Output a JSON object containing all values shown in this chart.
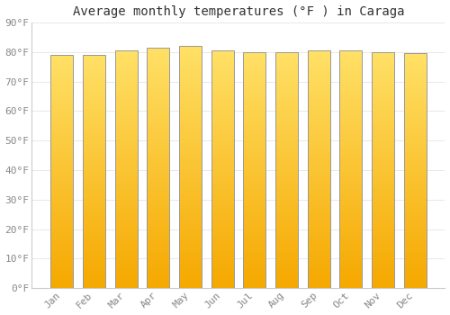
{
  "title": "Average monthly temperatures (°F ) in Caraga",
  "months": [
    "Jan",
    "Feb",
    "Mar",
    "Apr",
    "May",
    "Jun",
    "Jul",
    "Aug",
    "Sep",
    "Oct",
    "Nov",
    "Dec"
  ],
  "values": [
    79,
    79,
    80.5,
    81.5,
    82,
    80.5,
    80,
    80,
    80.5,
    80.5,
    80,
    79.5
  ],
  "ylim": [
    0,
    90
  ],
  "yticks": [
    0,
    10,
    20,
    30,
    40,
    50,
    60,
    70,
    80,
    90
  ],
  "ytick_labels": [
    "0°F",
    "10°F",
    "20°F",
    "30°F",
    "40°F",
    "50°F",
    "60°F",
    "70°F",
    "80°F",
    "90°F"
  ],
  "bar_color_bottom": "#F5A800",
  "bar_color_top": "#FFE066",
  "bar_color_mid": "#FFB700",
  "bar_edge_color": "#999999",
  "background_color": "#FFFFFF",
  "grid_color": "#E8E8E8",
  "title_fontsize": 10,
  "tick_fontsize": 8,
  "font_family": "monospace",
  "bar_width": 0.7
}
